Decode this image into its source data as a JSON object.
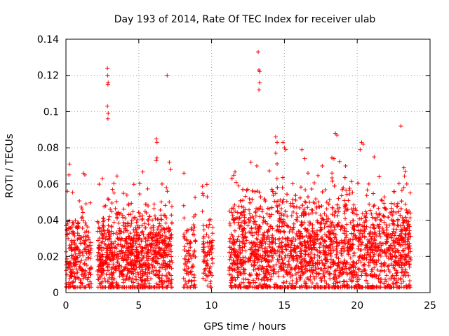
{
  "chart_data": {
    "type": "scatter",
    "title": "Day 193 of 2014, Rate Of TEC Index for receiver ulab",
    "xlabel": "GPS time / hours",
    "ylabel": "ROTI / TECUs",
    "xlim": [
      0,
      25
    ],
    "ylim": [
      0,
      0.14
    ],
    "x_ticks": [
      "0",
      "5",
      "10",
      "15",
      "20",
      "25"
    ],
    "y_ticks": [
      "0",
      "0.02",
      "0.04",
      "0.06",
      "0.08",
      "0.1",
      "0.12",
      "0.14"
    ],
    "x_tick_values": [
      0,
      5,
      10,
      15,
      20,
      25
    ],
    "y_tick_values": [
      0,
      0.02,
      0.04,
      0.06,
      0.07999999999999999,
      0.1,
      0.12,
      0.14
    ],
    "grid": true,
    "marker": "+",
    "color": "#ff0000",
    "segments": [
      {
        "start": 0.0,
        "end": 1.75,
        "base": 0.018,
        "spread": 0.022,
        "density": 150
      },
      {
        "start": 2.15,
        "end": 7.3,
        "base": 0.02,
        "spread": 0.025,
        "density": 190
      },
      {
        "start": 8.05,
        "end": 8.9,
        "base": 0.018,
        "spread": 0.02,
        "density": 110
      },
      {
        "start": 9.35,
        "end": 10.1,
        "base": 0.02,
        "spread": 0.022,
        "density": 110
      },
      {
        "start": 11.2,
        "end": 23.7,
        "base": 0.022,
        "spread": 0.03,
        "density": 210
      }
    ],
    "outliers": [
      [
        0.1,
        0.056
      ],
      [
        0.2,
        0.065
      ],
      [
        0.25,
        0.071
      ],
      [
        1.2,
        0.066
      ],
      [
        1.3,
        0.065
      ],
      [
        2.5,
        0.063
      ],
      [
        2.85,
        0.124
      ],
      [
        2.87,
        0.12
      ],
      [
        2.9,
        0.116
      ],
      [
        2.88,
        0.115
      ],
      [
        2.85,
        0.103
      ],
      [
        2.9,
        0.099
      ],
      [
        2.88,
        0.096
      ],
      [
        3.2,
        0.057
      ],
      [
        3.3,
        0.055
      ],
      [
        6.2,
        0.085
      ],
      [
        6.25,
        0.083
      ],
      [
        6.2,
        0.073
      ],
      [
        6.6,
        0.06
      ],
      [
        6.9,
        0.058
      ],
      [
        6.95,
        0.12
      ],
      [
        7.1,
        0.072
      ],
      [
        7.2,
        0.068
      ],
      [
        8.1,
        0.066
      ],
      [
        13.2,
        0.133
      ],
      [
        13.25,
        0.123
      ],
      [
        13.3,
        0.122
      ],
      [
        13.3,
        0.116
      ],
      [
        13.25,
        0.112
      ],
      [
        13.1,
        0.07
      ],
      [
        12.7,
        0.072
      ],
      [
        14.4,
        0.086
      ],
      [
        14.5,
        0.083
      ],
      [
        14.4,
        0.077
      ],
      [
        14.9,
        0.083
      ],
      [
        15.0,
        0.08
      ],
      [
        15.1,
        0.079
      ],
      [
        16.2,
        0.079
      ],
      [
        16.4,
        0.074
      ],
      [
        17.6,
        0.07
      ],
      [
        18.5,
        0.088
      ],
      [
        18.6,
        0.087
      ],
      [
        18.4,
        0.074
      ],
      [
        19.2,
        0.07
      ],
      [
        20.3,
        0.083
      ],
      [
        20.2,
        0.079
      ],
      [
        20.4,
        0.082
      ],
      [
        20.8,
        0.06
      ],
      [
        21.5,
        0.064
      ],
      [
        23.0,
        0.092
      ],
      [
        23.2,
        0.069
      ],
      [
        23.3,
        0.067
      ],
      [
        23.4,
        0.06
      ]
    ]
  }
}
